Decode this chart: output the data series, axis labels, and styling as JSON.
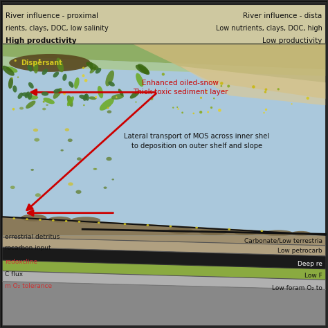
{
  "title": "",
  "bg_outer": "#2d2d2d",
  "bg_header": "#d4cba0",
  "bg_water": "#a8c8dc",
  "bg_border": "#222222",
  "texts": {
    "river_proximal": "River influence - proximal",
    "river_distal": "River influence - dista",
    "nutrients_left": "rients, clays, DOC, low salinity",
    "nutrients_right": "Low nutrients, clays, DOC, high",
    "productivity_left": "High productivity",
    "productivity_right": "Low productivity",
    "dispersant": "Dispersant",
    "enhanced_snow": "Enhanced oiled-snow\nThick toxic sediment layer",
    "lateral": "Lateral transport of MOS across inner shel\nto deposition on outer shelf and slope",
    "terrestrial": "errestrial detritus",
    "carbonate": "Carbonate/Low terrestria",
    "petrocarbon": "rocarbon input",
    "low_petrocarbon": "Low petrocarb",
    "redoxcline": "redoxcline",
    "deep_re": "Deep re",
    "c_flux": "C flux",
    "low_f": "Low F",
    "o2_tolerance": "m O₂ tolerance",
    "low_foram": "Low foram O₂ to"
  },
  "layer_colors": {
    "header_grad_left": "#c8be8a",
    "header_grad_right": "#d8d0a8",
    "green_surface": "#7a9a40",
    "water": "#a0c0d8",
    "sediment_dark": "#6b5a3e",
    "sediment_light": "#b0a080",
    "taupe": "#8b7d60",
    "black": "#111111",
    "olive_green": "#7a9a30",
    "white": "#ffffff"
  },
  "arrow_color": "#cc0000",
  "dispersant_color": "#5a4a20",
  "green_algae": "#5a8020"
}
